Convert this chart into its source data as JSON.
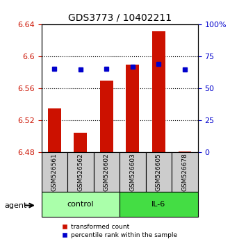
{
  "title": "GDS3773 / 10402211",
  "samples": [
    "GSM526561",
    "GSM526562",
    "GSM526602",
    "GSM526603",
    "GSM526605",
    "GSM526678"
  ],
  "bar_bottoms": [
    6.48,
    6.48,
    6.48,
    6.48,
    6.48,
    6.48
  ],
  "bar_tops": [
    6.535,
    6.505,
    6.57,
    6.59,
    6.632,
    6.481
  ],
  "blue_dots_left": [
    6.585,
    6.584,
    6.585,
    6.587,
    6.591,
    6.584
  ],
  "bar_color": "#cc1100",
  "dot_color": "#0000cc",
  "ylim_left": [
    6.48,
    6.64
  ],
  "ylim_right": [
    0,
    100
  ],
  "yticks_left": [
    6.48,
    6.52,
    6.56,
    6.6,
    6.64
  ],
  "yticks_left_labels": [
    "6.48",
    "6.52",
    "6.56",
    "6.6",
    "6.64"
  ],
  "yticks_right": [
    0,
    25,
    50,
    75,
    100
  ],
  "yticks_right_labels": [
    "0",
    "25",
    "50",
    "75",
    "100%"
  ],
  "grid_lines": [
    6.56,
    6.6
  ],
  "grid_lines_all": [
    6.52,
    6.56,
    6.6
  ],
  "group1_samples": [
    0,
    1,
    2
  ],
  "group2_samples": [
    3,
    4,
    5
  ],
  "group1_label": "control",
  "group2_label": "IL-6",
  "group1_color": "#aaffaa",
  "group2_color": "#44dd44",
  "agent_label": "agent",
  "sample_box_color": "#cccccc",
  "legend_bar_label": "transformed count",
  "legend_dot_label": "percentile rank within the sample",
  "background_color": "#ffffff"
}
